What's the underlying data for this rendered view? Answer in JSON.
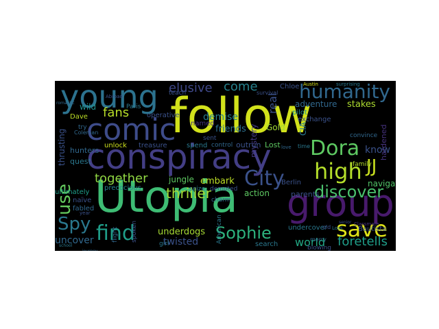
{
  "wordcloud": {
    "background": "#000000",
    "words": [
      {
        "text": "follow",
        "color": "#d2e21b"
      },
      {
        "text": "Utopia",
        "color": "#3ebc74"
      },
      {
        "text": "conspiracy",
        "color": "#433e85"
      },
      {
        "text": "group",
        "color": "#481a6c"
      },
      {
        "text": "young",
        "color": "#2c728e"
      },
      {
        "text": "comic",
        "color": "#3e4c8a"
      },
      {
        "text": "humanity",
        "color": "#31688e"
      },
      {
        "text": "Dora",
        "color": "#5ec962"
      },
      {
        "text": "high",
        "color": "#b5de2b"
      },
      {
        "text": "save",
        "color": "#dfe318"
      },
      {
        "text": "JJ",
        "color": "#cae11f"
      },
      {
        "text": "City",
        "color": "#3b528b"
      },
      {
        "text": "find",
        "color": "#1f9e89"
      },
      {
        "text": "Sophie",
        "color": "#2db27d"
      },
      {
        "text": "Spy",
        "color": "#2a788e"
      },
      {
        "text": "use",
        "color": "#65cb5e"
      },
      {
        "text": "discover",
        "color": "#4ac16d"
      },
      {
        "text": "together",
        "color": "#90d743"
      },
      {
        "text": "thriller",
        "color": "#a5db36"
      },
      {
        "text": "fans",
        "color": "#b8de29"
      },
      {
        "text": "come",
        "color": "#26828e"
      },
      {
        "text": "elusive",
        "color": "#3f4889"
      },
      {
        "text": "real",
        "color": "#3b528b"
      },
      {
        "text": "foretells",
        "color": "#1f9e89"
      },
      {
        "text": "world",
        "color": "#22a884"
      },
      {
        "text": "twisted",
        "color": "#3b528b"
      },
      {
        "text": "underdogs",
        "color": "#a8db34"
      },
      {
        "text": "uncover",
        "color": "#31688e"
      },
      {
        "text": "know",
        "color": "#3b528b"
      },
      {
        "text": "navigate",
        "color": "#52c569"
      },
      {
        "text": "stakes",
        "color": "#addc30"
      },
      {
        "text": "adventure",
        "color": "#31688e"
      },
      {
        "text": "demise",
        "color": "#277f8e"
      },
      {
        "text": "friends",
        "color": "#2d708e"
      },
      {
        "text": "embark",
        "color": "#bddf26"
      },
      {
        "text": "jungle",
        "color": "#5ec962"
      },
      {
        "text": "action",
        "color": "#5ec962"
      },
      {
        "text": "mystery",
        "color": "#443983"
      },
      {
        "text": "Gold",
        "color": "#a2da37"
      },
      {
        "text": "thrusting",
        "color": "#3b528b"
      },
      {
        "text": "wild",
        "color": "#21918c"
      },
      {
        "text": "Dave",
        "color": "#bddf26"
      },
      {
        "text": "unlock",
        "color": "#cde11d"
      },
      {
        "text": "treasure",
        "color": "#3b528b"
      },
      {
        "text": "hunters",
        "color": "#31688e"
      },
      {
        "text": "quest",
        "color": "#2a788e"
      },
      {
        "text": "precocious",
        "color": "#26828e"
      },
      {
        "text": "ultimately",
        "color": "#1f9e89"
      },
      {
        "text": "naïve",
        "color": "#3b528b"
      },
      {
        "text": "fabled",
        "color": "#31688e"
      },
      {
        "text": "operative",
        "color": "#3b528b"
      },
      {
        "text": "named",
        "color": "#46327e"
      },
      {
        "text": "spend",
        "color": "#2a788e"
      },
      {
        "text": "control",
        "color": "#31688e"
      },
      {
        "text": "outrun",
        "color": "#3b528b"
      },
      {
        "text": "Lost",
        "color": "#5ec962"
      },
      {
        "text": "seize",
        "color": "#2a788e"
      },
      {
        "text": "demoted",
        "color": "#3b528b"
      },
      {
        "text": "charm",
        "color": "#31688e"
      },
      {
        "text": "parents",
        "color": "#3b528b"
      },
      {
        "text": "Berlin",
        "color": "#3b528b"
      },
      {
        "text": "undercover",
        "color": "#2a788e"
      },
      {
        "text": "Bautista",
        "color": "#3b528b"
      },
      {
        "text": "convince",
        "color": "#31688e"
      },
      {
        "text": "family",
        "color": "#b5de2b"
      },
      {
        "text": "hardened",
        "color": "#46327e"
      },
      {
        "text": "CIA",
        "color": "#2a788e"
      },
      {
        "text": "pilot",
        "color": "#21918c"
      },
      {
        "text": "exchange",
        "color": "#3b528b"
      },
      {
        "text": "Chloe",
        "color": "#3b528b"
      },
      {
        "text": "search",
        "color": "#2a788e"
      },
      {
        "text": "teach",
        "color": "#3b528b"
      },
      {
        "text": "Paris",
        "color": "#2a788e"
      },
      {
        "text": "try",
        "color": "#31688e"
      },
      {
        "text": "sent",
        "color": "#3b528b"
      },
      {
        "text": "girl",
        "color": "#2a788e"
      },
      {
        "text": "flight",
        "color": "#31688e"
      },
      {
        "text": "spoken",
        "color": "#3b528b"
      },
      {
        "text": "American",
        "color": "#2a788e"
      },
      {
        "text": "blowing",
        "color": "#3b528b"
      },
      {
        "text": "merry",
        "color": "#31688e"
      },
      {
        "text": "old",
        "color": "#3b528b"
      },
      {
        "text": "Loss",
        "color": "#2a788e"
      },
      {
        "text": "Austin",
        "color": "#d8e219"
      },
      {
        "text": "surprising",
        "color": "#2a788e"
      },
      {
        "text": "survival",
        "color": "#3b528b"
      },
      {
        "text": "time",
        "color": "#2a788e"
      },
      {
        "text": "love",
        "color": "#31688e"
      },
      {
        "text": "Classmate",
        "color": "#46327e"
      },
      {
        "text": "senior",
        "color": "#3b528b"
      },
      {
        "text": "school",
        "color": "#2a788e"
      },
      {
        "text": "journey",
        "color": "#31688e"
      },
      {
        "text": "year",
        "color": "#3b528b"
      },
      {
        "text": "Coleman",
        "color": "#31688e"
      },
      {
        "text": "Abroad",
        "color": "#3b528b"
      },
      {
        "text": "romantic",
        "color": "#31688e"
      }
    ]
  }
}
